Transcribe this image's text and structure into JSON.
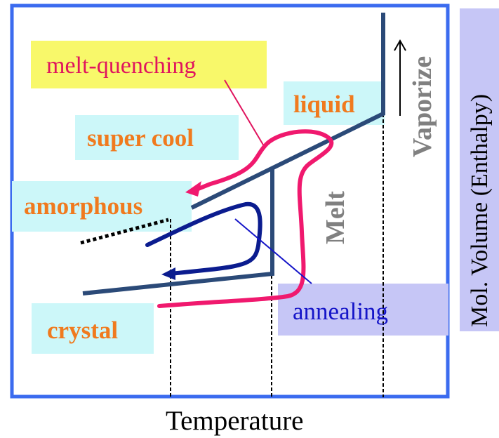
{
  "labels": {
    "melt_quenching": "melt-quenching",
    "liquid": "liquid",
    "super_cool": "super cool",
    "amorphous": "amorphous",
    "crystal": "crystal",
    "annealing": "annealing",
    "melt": "Melt",
    "vaporize": "Vaporize",
    "y_axis": "Mol. Volume (Enthalpy)",
    "x_axis": "Temperature"
  },
  "colors": {
    "frame": "#3b6bef",
    "phase_line": "#2b4a78",
    "quench_path": "#f0196e",
    "anneal_path": "#0b1c8f",
    "orange_text": "#f07a1e",
    "magenta_text": "#e0145e",
    "annealing_text": "#1515c8",
    "cyan_box": "#ccf7f9",
    "yellow_box": "#f8f86a",
    "lavender_box": "#c6c6f6",
    "gray_text": "#808080",
    "black": "#000000"
  }
}
